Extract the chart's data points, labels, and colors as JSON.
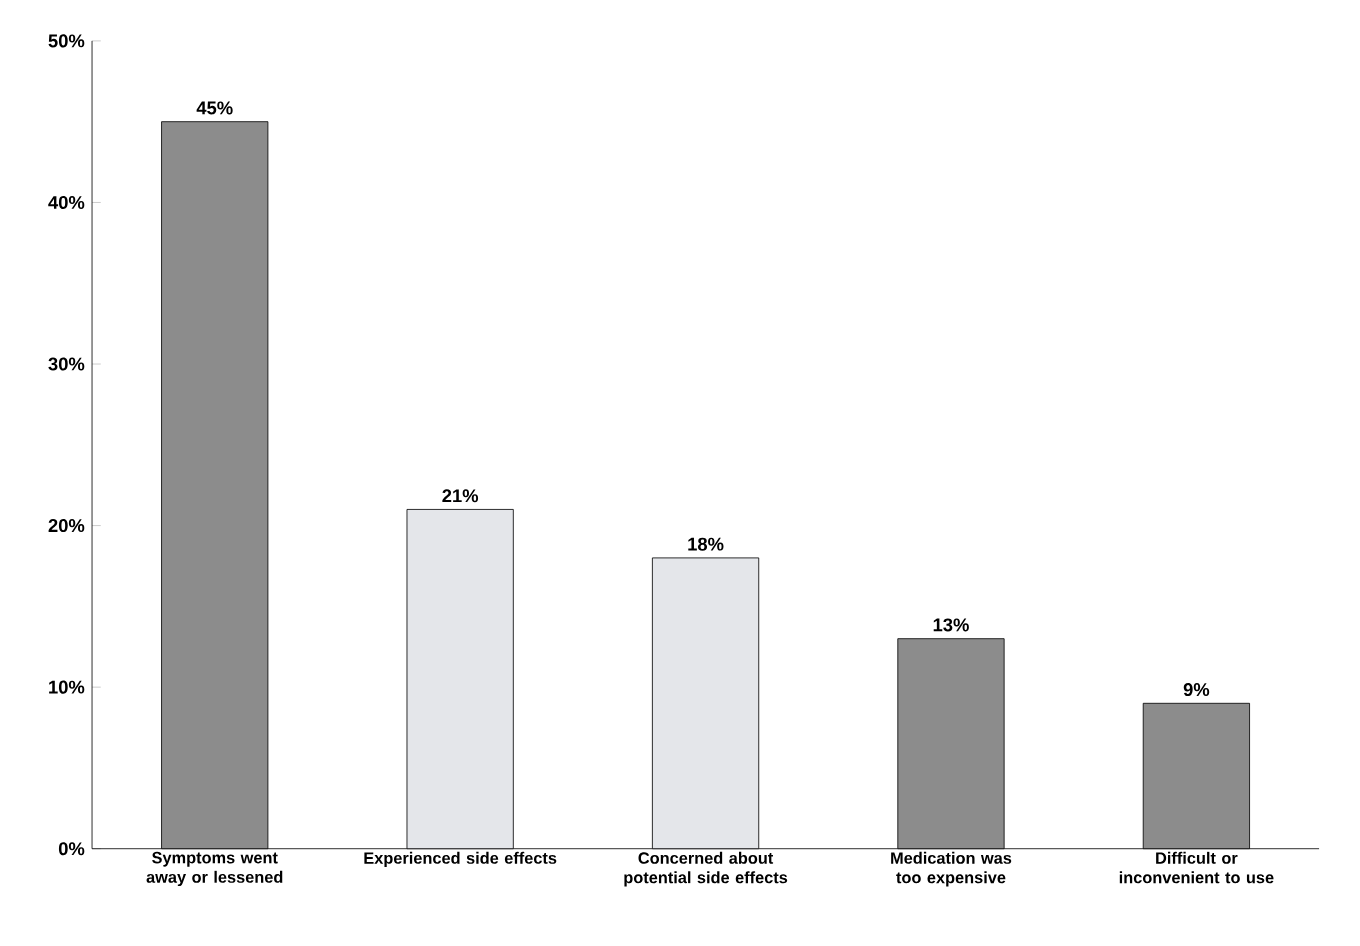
{
  "chart_data": {
    "type": "bar",
    "categories": [
      "Symptoms went away or lessened",
      "Experienced side effects",
      "Concerned about potential side effects",
      "Medication was too expensive",
      "Difficult or inconvenient to use"
    ],
    "values": [
      45,
      21,
      18,
      13,
      9
    ],
    "colors": [
      "#8c8c8c",
      "#e4e6ea",
      "#e4e6ea",
      "#8c8c8c",
      "#8c8c8c"
    ],
    "value_labels": [
      "45%",
      "21%",
      "18%",
      "13%",
      "9%"
    ],
    "ylim": [
      0,
      50
    ],
    "yticks": [
      {
        "value": 0,
        "label": "0%"
      },
      {
        "value": 10,
        "label": "10%"
      },
      {
        "value": 20,
        "label": "20%"
      },
      {
        "value": 30,
        "label": "30%"
      },
      {
        "value": 40,
        "label": "40%"
      },
      {
        "value": 50,
        "label": "50%"
      }
    ],
    "grid": false
  }
}
